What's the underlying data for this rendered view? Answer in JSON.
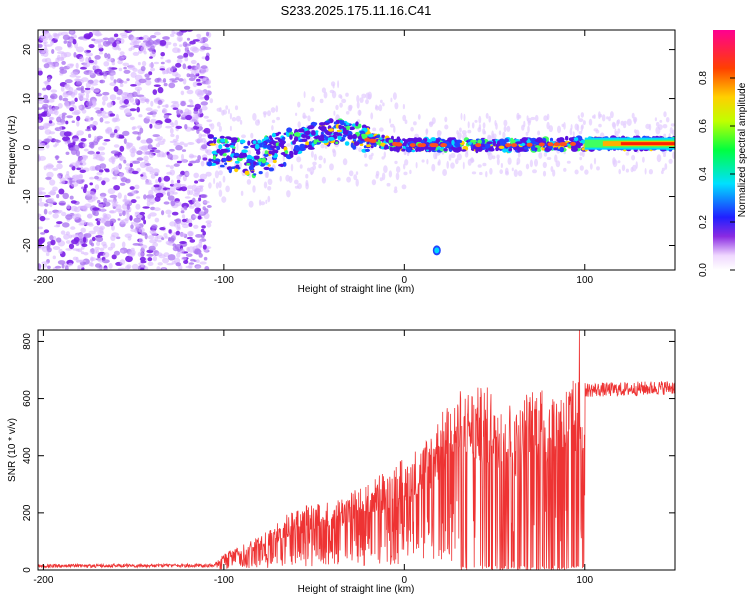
{
  "title": "S233.2025.175.11.16.C41",
  "chart_data": [
    {
      "type": "heatmap",
      "xlabel": "Height of straight line (km)",
      "ylabel": "Frequency (Hz)",
      "xlim": [
        -203,
        150
      ],
      "ylim": [
        -25,
        24
      ],
      "xticks": [
        -200,
        -100,
        0,
        100
      ],
      "yticks": [
        -20,
        -10,
        0,
        10,
        20
      ],
      "colorbar": {
        "label": "Normalized spectral amplitude",
        "range": [
          0,
          1
        ],
        "ticks": [
          0.0,
          0.2,
          0.4,
          0.6,
          0.8
        ],
        "tick_labels": [
          "0.0",
          "0.2",
          "0.4",
          "0.6",
          "0.8"
        ]
      },
      "features": {
        "noise_region_x": [
          -203,
          -108
        ],
        "signal_trend": [
          {
            "x": -108,
            "f": 0.0
          },
          {
            "x": -85,
            "f": -2.5
          },
          {
            "x": -70,
            "f": -0.5
          },
          {
            "x": -50,
            "f": 2.5
          },
          {
            "x": -35,
            "f": 3.5
          },
          {
            "x": -20,
            "f": 1.5
          },
          {
            "x": 0,
            "f": 0.5
          },
          {
            "x": 20,
            "f": 0.5
          },
          {
            "x": 60,
            "f": 0.5
          },
          {
            "x": 100,
            "f": 0.8
          },
          {
            "x": 150,
            "f": 0.8
          }
        ],
        "steady_band_x": [
          100,
          150
        ],
        "isolated_blob": {
          "x": 18,
          "f": -21
        }
      }
    },
    {
      "type": "line",
      "xlabel": "Height of straight line (km)",
      "ylabel": "SNR (10 * v/v)",
      "xlim": [
        -203,
        150
      ],
      "ylim": [
        0,
        840
      ],
      "xticks": [
        -200,
        -100,
        0,
        100
      ],
      "yticks": [
        0,
        200,
        400,
        600,
        800
      ],
      "color": "#ee3333",
      "series": [
        {
          "envelope": [
            {
              "x": -203,
              "y": 20
            },
            {
              "x": -105,
              "y": 22
            },
            {
              "x": -100,
              "y": 55
            },
            {
              "x": -80,
              "y": 110
            },
            {
              "x": -60,
              "y": 210
            },
            {
              "x": -40,
              "y": 230
            },
            {
              "x": -20,
              "y": 290
            },
            {
              "x": 0,
              "y": 380
            },
            {
              "x": 10,
              "y": 420
            },
            {
              "x": 20,
              "y": 520
            },
            {
              "x": 30,
              "y": 600
            },
            {
              "x": 45,
              "y": 615
            },
            {
              "x": 55,
              "y": 590
            },
            {
              "x": 62,
              "y": 530
            },
            {
              "x": 70,
              "y": 620
            },
            {
              "x": 85,
              "y": 600
            },
            {
              "x": 95,
              "y": 640
            },
            {
              "x": 100,
              "y": 630
            },
            {
              "x": 120,
              "y": 632
            },
            {
              "x": 150,
              "y": 640
            }
          ],
          "spike_max": {
            "x": 97,
            "y": 840
          }
        }
      ]
    }
  ]
}
